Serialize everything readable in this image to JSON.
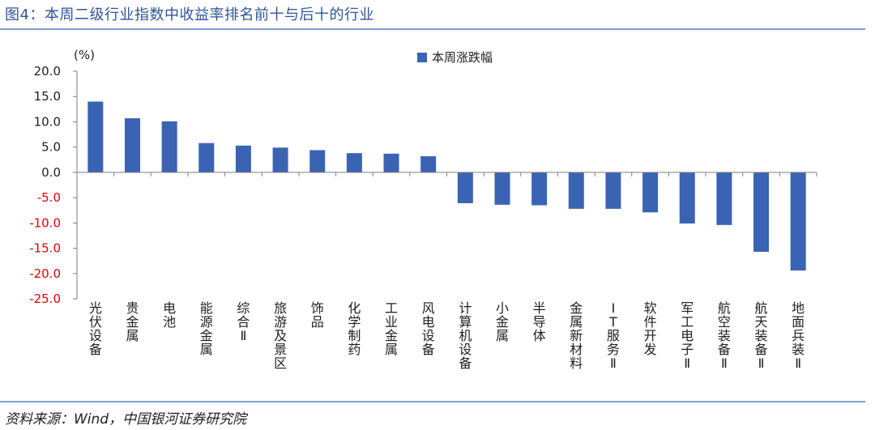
{
  "header": {
    "title": "图4：本周二级行业指数中收益率排名前十与后十的行业"
  },
  "footer": {
    "source": "资料来源：Wind，中国银河证券研究院"
  },
  "colors": {
    "title": "#2f5597",
    "bar": "#3a63b4",
    "negative_tick": "#e60000",
    "rule": "#7f9ccf"
  },
  "chart_data": {
    "type": "bar",
    "title": "",
    "xlabel": "",
    "ylabel": "(%)",
    "ylim": [
      -25,
      20
    ],
    "yticks": [
      "20.0",
      "15.0",
      "10.0",
      "5.0",
      "0.0",
      "-5.0",
      "-10.0",
      "-15.0",
      "-20.0",
      "-25.0"
    ],
    "grid": false,
    "legend_position": "top-center",
    "categories": [
      "光伏设备",
      "贵金属",
      "电池",
      "能源金属",
      "综合Ⅱ",
      "旅游及景区",
      "饰品",
      "化学制药",
      "工业金属",
      "风电设备",
      "计算机设备",
      "小金属",
      "半导体",
      "金属新材料",
      "IT服务Ⅱ",
      "软件开发",
      "军工电子Ⅱ",
      "航空装备Ⅱ",
      "航天装备Ⅱ",
      "地面兵装Ⅱ"
    ],
    "series": [
      {
        "name": "本周涨跌幅",
        "values": [
          14.0,
          10.7,
          10.1,
          5.8,
          5.3,
          4.9,
          4.4,
          3.8,
          3.7,
          3.2,
          -6.1,
          -6.4,
          -6.5,
          -7.2,
          -7.2,
          -7.9,
          -10.1,
          -10.4,
          -15.7,
          -19.4
        ]
      }
    ]
  }
}
